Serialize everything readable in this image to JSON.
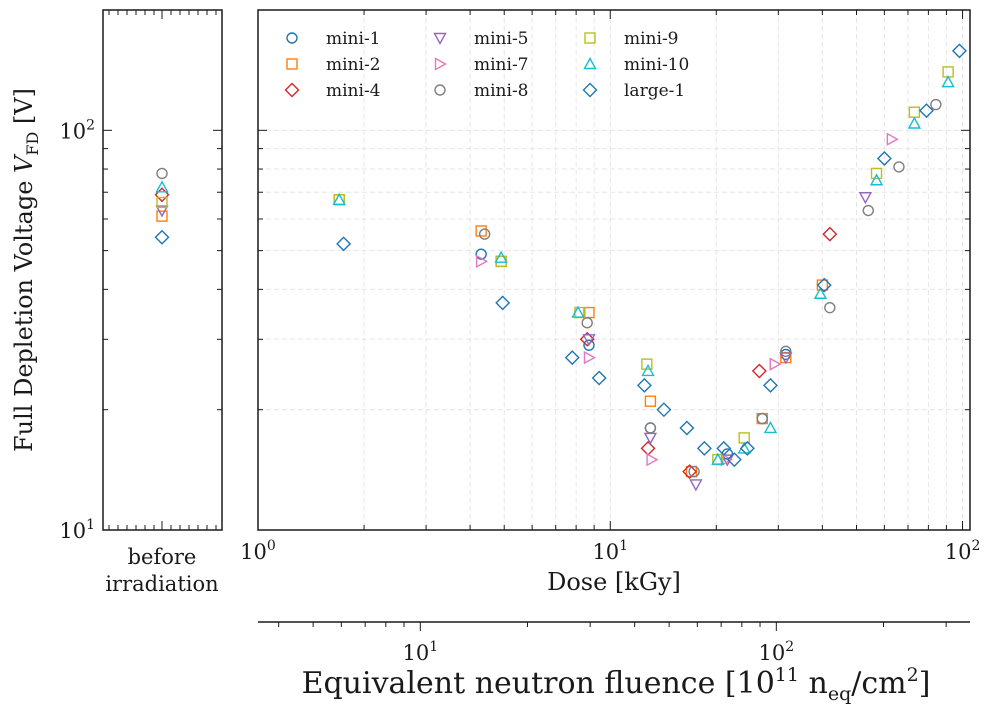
{
  "chart_data": {
    "type": "scatter",
    "ylabel": "Full Depletion Voltage V_FD [V]",
    "ylabel_main": "Full Depletion Voltage ",
    "ylabel_var": "V",
    "ylabel_sub": "FD",
    "ylabel_unit": " [V]",
    "xlabel": "Dose [kGy]",
    "secondary_xlabel": "Equivalent neutron fluence [10^11 n_eq/cm^2]",
    "secondary_xlabel_prefix": "Equivalent neutron fluence [10",
    "secondary_xlabel_exp": "11",
    "secondary_xlabel_mid": " n",
    "secondary_xlabel_sub": "eq",
    "secondary_xlabel_unit": "/cm",
    "secondary_xlabel_exp2": "2",
    "secondary_xlabel_close": "]",
    "x_scale": "log",
    "y_scale": "log",
    "xlim": [
      1,
      105
    ],
    "ylim": [
      10,
      200
    ],
    "secondary_xlim": [
      3.5,
      350
    ],
    "left_panel_category": [
      "before",
      "irradiation"
    ],
    "xticks": [
      {
        "base": "10",
        "exp": "0",
        "value": 1
      },
      {
        "base": "10",
        "exp": "1",
        "value": 10
      },
      {
        "base": "10",
        "exp": "2",
        "value": 100
      }
    ],
    "yticks": [
      {
        "base": "10",
        "exp": "1",
        "value": 10
      },
      {
        "base": "10",
        "exp": "2",
        "value": 100
      }
    ],
    "secondary_xticks": [
      {
        "base": "10",
        "exp": "1",
        "value": 10
      },
      {
        "base": "10",
        "exp": "2",
        "value": 100
      }
    ],
    "legend_position": "top-left",
    "series": [
      {
        "name": "mini-1",
        "marker": "circle",
        "color": "#1f77b4",
        "before": [],
        "points": [
          [
            4.3,
            49
          ],
          [
            8.7,
            29
          ],
          [
            13,
            18
          ],
          [
            21.5,
            15.5
          ],
          [
            27,
            19
          ],
          [
            31.5,
            27.5
          ]
        ]
      },
      {
        "name": "mini-2",
        "marker": "square",
        "color": "#ff7f0e",
        "before": [
          61
        ],
        "points": [
          [
            1.7,
            67
          ],
          [
            4.3,
            56
          ],
          [
            4.9,
            47
          ],
          [
            8.7,
            35
          ],
          [
            13,
            21
          ],
          [
            17,
            14
          ],
          [
            27,
            19
          ],
          [
            31.5,
            27
          ],
          [
            40,
            41
          ]
        ]
      },
      {
        "name": "mini-4",
        "marker": "diamond",
        "color": "#d62728",
        "before": [
          69
        ],
        "points": [
          [
            8.6,
            30
          ],
          [
            12.8,
            16
          ],
          [
            16.8,
            14
          ],
          [
            26.5,
            25
          ],
          [
            42,
            55
          ]
        ]
      },
      {
        "name": "mini-5",
        "marker": "triangle-down",
        "color": "#9467bd",
        "before": [
          63
        ],
        "points": [
          [
            8.7,
            30
          ],
          [
            13,
            17
          ],
          [
            17.5,
            13
          ],
          [
            21.5,
            15
          ],
          [
            31.5,
            27
          ],
          [
            53,
            68
          ]
        ]
      },
      {
        "name": "mini-7",
        "marker": "triangle-right",
        "color": "#e377c2",
        "before": [],
        "points": [
          [
            4.3,
            47
          ],
          [
            8.7,
            27
          ],
          [
            13.1,
            15
          ],
          [
            21.3,
            15
          ],
          [
            29.3,
            26
          ],
          [
            63,
            95
          ]
        ]
      },
      {
        "name": "mini-8",
        "marker": "circle",
        "color": "#7f7f7f",
        "before": [
          78
        ],
        "points": [
          [
            4.4,
            55
          ],
          [
            8.6,
            33
          ],
          [
            13,
            18
          ],
          [
            17.3,
            14
          ],
          [
            27,
            19
          ],
          [
            31.5,
            28
          ],
          [
            42,
            36
          ],
          [
            54,
            63
          ],
          [
            66,
            81
          ],
          [
            84,
            116
          ]
        ]
      },
      {
        "name": "mini-9",
        "marker": "square",
        "color": "#bcbd22",
        "before": [
          66
        ],
        "points": [
          [
            1.7,
            67
          ],
          [
            4.9,
            47
          ],
          [
            8.2,
            35
          ],
          [
            12.7,
            26
          ],
          [
            20.2,
            15
          ],
          [
            24,
            17
          ],
          [
            57,
            78
          ],
          [
            73,
            111
          ],
          [
            91,
            140
          ]
        ]
      },
      {
        "name": "mini-10",
        "marker": "triangle-up",
        "color": "#17becf",
        "before": [
          72
        ],
        "points": [
          [
            1.7,
            67
          ],
          [
            4.9,
            48
          ],
          [
            8.1,
            35
          ],
          [
            12.8,
            25
          ],
          [
            20.2,
            15
          ],
          [
            24,
            16
          ],
          [
            28.5,
            18
          ],
          [
            39.5,
            39
          ],
          [
            57,
            75
          ],
          [
            73,
            104
          ],
          [
            91,
            132
          ]
        ]
      },
      {
        "name": "large-1",
        "marker": "diamond",
        "color": "#1f77b4",
        "before": [
          54
        ],
        "points": [
          [
            1.75,
            52
          ],
          [
            4.95,
            37
          ],
          [
            7.8,
            27
          ],
          [
            9.3,
            24
          ],
          [
            12.5,
            23
          ],
          [
            14.2,
            20
          ],
          [
            16.5,
            18
          ],
          [
            18.5,
            16
          ],
          [
            21,
            16
          ],
          [
            22.5,
            15
          ],
          [
            24.5,
            16
          ],
          [
            28.5,
            23
          ],
          [
            40.5,
            41
          ],
          [
            60,
            85
          ],
          [
            79,
            112
          ],
          [
            98,
            158
          ]
        ]
      }
    ]
  }
}
